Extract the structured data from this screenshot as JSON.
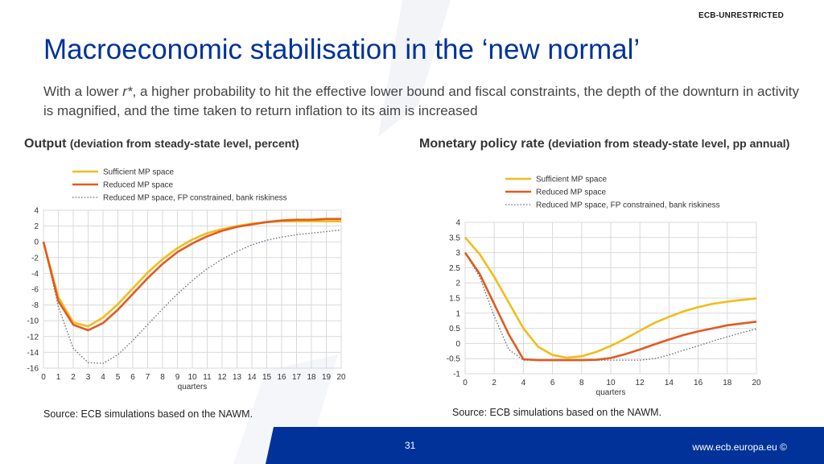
{
  "header": {
    "classification": "ECB-UNRESTRICTED",
    "title": "Macroeconomic stabilisation in the ‘new normal’",
    "subtitle_pre": "With a lower ",
    "subtitle_rstar": "r*",
    "subtitle_post": ", a higher probability to hit the effective lower bound and fiscal constraints, the depth of the downturn in activity is magnified, and the time taken to return inflation to its aim is increased"
  },
  "left_panel": {
    "title": "Output",
    "title_sub": "(deviation from steady-state level, percent)",
    "source": "Source: ECB simulations based on the NAWM."
  },
  "right_panel": {
    "title": "Monetary policy rate",
    "title_sub": "(deviation from steady-state level, pp annual)",
    "source": "Source: ECB simulations based on the NAWM."
  },
  "footer": {
    "page_number": "31",
    "url": "www.ecb.europa.eu ©"
  },
  "colors": {
    "brand_blue": "#003299",
    "sufficient": "#F2BC1B",
    "reduced": "#E25A21",
    "constrained": "#5A6A7A"
  },
  "chart_data": [
    {
      "type": "line",
      "xlabel": "quarters",
      "ylabel": "",
      "xlim": [
        0,
        20
      ],
      "ylim": [
        -16,
        4
      ],
      "xticks": [
        0,
        1,
        2,
        3,
        4,
        5,
        6,
        7,
        8,
        9,
        10,
        11,
        12,
        13,
        14,
        15,
        16,
        17,
        18,
        19,
        20
      ],
      "yticks": [
        4,
        2,
        0,
        -2,
        -4,
        -6,
        -8,
        -10,
        -12,
        -14,
        -16
      ],
      "grid": true,
      "legend_position": "top-left",
      "x": [
        0,
        1,
        2,
        3,
        4,
        5,
        6,
        7,
        8,
        9,
        10,
        11,
        12,
        13,
        14,
        15,
        16,
        17,
        18,
        19,
        20
      ],
      "series": [
        {
          "name": "Sufficient MP space",
          "style": "solid",
          "color": "#F2BC1B",
          "values": [
            0,
            -7,
            -10.2,
            -10.7,
            -9.6,
            -7.9,
            -5.9,
            -3.9,
            -2.2,
            -0.8,
            0.3,
            1.1,
            1.6,
            2.0,
            2.3,
            2.5,
            2.6,
            2.6,
            2.6,
            2.6,
            2.6
          ]
        },
        {
          "name": "Reduced MP space",
          "style": "solid",
          "color": "#E25A21",
          "values": [
            0,
            -7.5,
            -10.5,
            -11.2,
            -10.3,
            -8.6,
            -6.6,
            -4.6,
            -2.8,
            -1.3,
            -0.2,
            0.7,
            1.4,
            1.9,
            2.2,
            2.5,
            2.7,
            2.8,
            2.8,
            2.9,
            2.9
          ]
        },
        {
          "name": "Reduced MP space, FP constrained, bank riskiness",
          "style": "dotted",
          "color": "#5A6A7A",
          "values": [
            0,
            -8.2,
            -13.5,
            -15.3,
            -15.4,
            -14.3,
            -12.5,
            -10.5,
            -8.5,
            -6.6,
            -4.9,
            -3.4,
            -2.2,
            -1.2,
            -0.4,
            0.2,
            0.6,
            0.9,
            1.1,
            1.3,
            1.5
          ]
        }
      ]
    },
    {
      "type": "line",
      "xlabel": "quarters",
      "ylabel": "",
      "xlim": [
        0,
        20
      ],
      "ylim": [
        -1,
        4
      ],
      "xticks": [
        0,
        2,
        4,
        6,
        8,
        10,
        12,
        14,
        16,
        18,
        20
      ],
      "yticks": [
        4,
        3.5,
        3,
        2.5,
        2,
        1.5,
        1,
        0.5,
        0,
        -0.5,
        -1
      ],
      "grid": true,
      "legend_position": "top-left",
      "x": [
        0,
        1,
        2,
        3,
        4,
        5,
        6,
        7,
        8,
        9,
        10,
        11,
        12,
        13,
        14,
        15,
        16,
        17,
        18,
        19,
        20
      ],
      "series": [
        {
          "name": "Sufficient MP space",
          "style": "solid",
          "color": "#F2BC1B",
          "values": [
            3.5,
            2.95,
            2.2,
            1.35,
            0.5,
            -0.1,
            -0.38,
            -0.47,
            -0.42,
            -0.28,
            -0.08,
            0.16,
            0.42,
            0.68,
            0.88,
            1.06,
            1.2,
            1.31,
            1.38,
            1.44,
            1.49
          ]
        },
        {
          "name": "Reduced MP space",
          "style": "solid",
          "color": "#E25A21",
          "values": [
            3.0,
            2.3,
            1.3,
            0.3,
            -0.52,
            -0.55,
            -0.55,
            -0.55,
            -0.55,
            -0.54,
            -0.48,
            -0.35,
            -0.2,
            -0.03,
            0.13,
            0.28,
            0.4,
            0.5,
            0.6,
            0.66,
            0.72
          ]
        },
        {
          "name": "Reduced MP space, FP constrained, bank riskiness",
          "style": "dotted",
          "color": "#5A6A7A",
          "values": [
            3.0,
            2.2,
            0.9,
            -0.2,
            -0.55,
            -0.55,
            -0.55,
            -0.55,
            -0.55,
            -0.55,
            -0.55,
            -0.55,
            -0.55,
            -0.5,
            -0.38,
            -0.22,
            -0.08,
            0.08,
            0.22,
            0.36,
            0.48
          ]
        }
      ]
    }
  ]
}
